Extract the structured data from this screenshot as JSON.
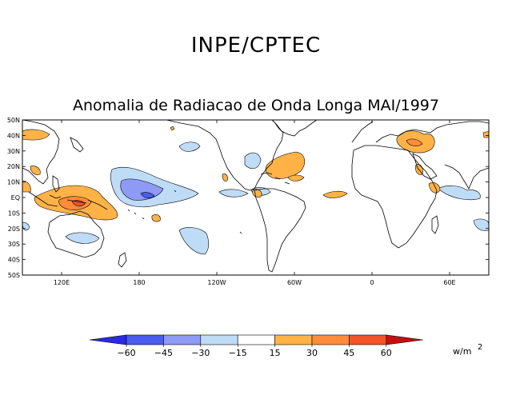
{
  "org_title": "INPE/CPTEC",
  "map_title": "Anomalia de Radiacao de Onda Longa MAI/1997",
  "lat_labels": [
    "50N",
    "40N",
    "30N",
    "20N",
    "10N",
    "EQ",
    "10S",
    "20S",
    "30S",
    "40S",
    "50S"
  ],
  "lon_labels": [
    "120E",
    "180",
    "120W",
    "60W",
    "0",
    "60E"
  ],
  "colorbar": {
    "ticks": [
      "-60",
      "-45",
      "-30",
      "-15",
      "15",
      "30",
      "45",
      "60"
    ],
    "colors": [
      "#2a2ae6",
      "#4b5cf0",
      "#8f9af5",
      "#bfdcf7",
      "#ffffff",
      "#ffb347",
      "#ff8c3a",
      "#f5532a",
      "#c80f0f"
    ],
    "units_base": "w/m",
    "units_exp": "2"
  },
  "colors": {
    "positive": "#ffb347",
    "positive_strong": "#ff8c3a",
    "positive_max": "#f5532a",
    "negative": "#bfdcf7",
    "negative_strong": "#8f9af5",
    "negative_max": "#4b5cf0"
  }
}
